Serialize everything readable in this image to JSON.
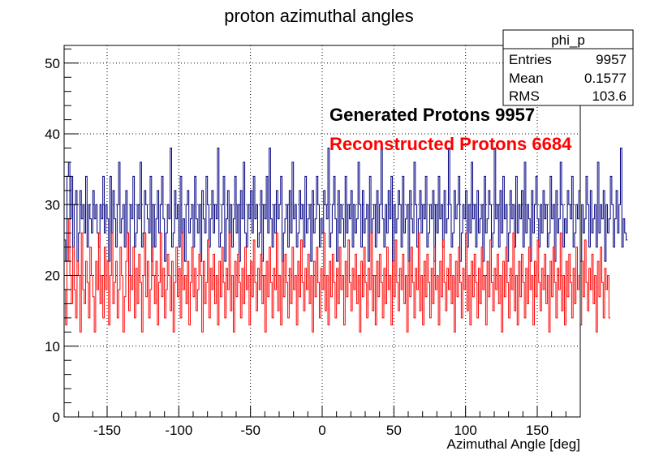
{
  "chart_data": {
    "type": "histogram",
    "title": "proton azimuthal angles",
    "xlabel": "Azimuthal Angle [deg]",
    "ylabel": "",
    "xlim": [
      -180,
      180
    ],
    "ylim": [
      0,
      52.5
    ],
    "grid": true,
    "x_ticks": [
      -150,
      -100,
      -50,
      0,
      50,
      100,
      150
    ],
    "x_tick_labels": [
      "-150",
      "-100",
      "-50",
      "0",
      "50",
      "100",
      "150"
    ],
    "y_ticks": [
      0,
      10,
      20,
      30,
      40,
      50
    ],
    "y_tick_labels": [
      "0",
      "10",
      "20",
      "30",
      "40",
      "50"
    ],
    "bin_range": [
      -180,
      180
    ],
    "n_bins": 360,
    "series": [
      {
        "name": "Generated Protons",
        "color": "#000080",
        "values": [
          25,
          22,
          34,
          36,
          28,
          34,
          24,
          30,
          32,
          22,
          26,
          32,
          28,
          30,
          26,
          34,
          24,
          30,
          28,
          26,
          32,
          28,
          30,
          26,
          24,
          30,
          28,
          34,
          26,
          30,
          28,
          22,
          34,
          26,
          32,
          28,
          24,
          30,
          36,
          26,
          28,
          30,
          24,
          32,
          26,
          20,
          30,
          28,
          34,
          24,
          26,
          30,
          28,
          36,
          24,
          26,
          32,
          30,
          28,
          26,
          34,
          22,
          30,
          24,
          28,
          32,
          26,
          30,
          34,
          28,
          22,
          26,
          30,
          28,
          38,
          24,
          26,
          32,
          28,
          30,
          24,
          34,
          26,
          28,
          22,
          30,
          32,
          26,
          28,
          30,
          24,
          34,
          28,
          26,
          30,
          22,
          32,
          28,
          26,
          34,
          30,
          24,
          28,
          32,
          26,
          30,
          28,
          38,
          24,
          26,
          30,
          34,
          22,
          28,
          32,
          26,
          30,
          24,
          28,
          34,
          26,
          30,
          22,
          32,
          28,
          36,
          26,
          24,
          30,
          28,
          32,
          26,
          34,
          28,
          30,
          24,
          26,
          32,
          22,
          30,
          28,
          34,
          26,
          38,
          28,
          24,
          30,
          26,
          32,
          28,
          30,
          34,
          22,
          26,
          28,
          30,
          24,
          32,
          26,
          36,
          28,
          30,
          24,
          26,
          32,
          28,
          30,
          24,
          34,
          26,
          28,
          30,
          22,
          32,
          26,
          28,
          34,
          30,
          24,
          28,
          26,
          32,
          30,
          28,
          38,
          24,
          26,
          30,
          34,
          28,
          22,
          32,
          26,
          30,
          28,
          24,
          34,
          26,
          30,
          28,
          32,
          24,
          30,
          26,
          28,
          36,
          30,
          24,
          32,
          26,
          28,
          30,
          22,
          34,
          26,
          28,
          30,
          24,
          32,
          26,
          30,
          38,
          28,
          24,
          30,
          26,
          32,
          28,
          34,
          22,
          30,
          26,
          28,
          32,
          30,
          24,
          34,
          26,
          28,
          30,
          22,
          32,
          28,
          26,
          36,
          30,
          24,
          28,
          32,
          26,
          30,
          28,
          34,
          24,
          26,
          30,
          28,
          32,
          22,
          30,
          26,
          34,
          28,
          30,
          24,
          32,
          26,
          28,
          38,
          30,
          24,
          26,
          32,
          28,
          30,
          34,
          22,
          26,
          30,
          28,
          32,
          24,
          30,
          26,
          36,
          28,
          30,
          24,
          32,
          26,
          28,
          30,
          22,
          34,
          26,
          28,
          32,
          30,
          24,
          26,
          38,
          28,
          30,
          24,
          32,
          26,
          34,
          28,
          30,
          22,
          26,
          32,
          28,
          30,
          24,
          34,
          26,
          30,
          28,
          32,
          24,
          36,
          26,
          30,
          28,
          22,
          32,
          26,
          30,
          34,
          28,
          24,
          30,
          26,
          32,
          28,
          30,
          24,
          26,
          34,
          28,
          30,
          22,
          32,
          26,
          28,
          36,
          30,
          24,
          28,
          26,
          32,
          30,
          28,
          34,
          24,
          26,
          30,
          28,
          32,
          22,
          30,
          26,
          28,
          34,
          30,
          24,
          32,
          26,
          28,
          30,
          24,
          36,
          26,
          30,
          28,
          32,
          22,
          30,
          26,
          28,
          34,
          30,
          24,
          28,
          32,
          26,
          30,
          38,
          24,
          28,
          26,
          25
        ],
        "entries": 9957
      },
      {
        "name": "Reconstructed Protons",
        "color": "#ff0000",
        "values": [
          18,
          13,
          22,
          28,
          20,
          16,
          24,
          18,
          14,
          22,
          20,
          12,
          26,
          18,
          16,
          22,
          19,
          14,
          24,
          20,
          17,
          12,
          22,
          18,
          26,
          16,
          20,
          14,
          24,
          18,
          22,
          13,
          20,
          26,
          16,
          19,
          22,
          14,
          18,
          24,
          20,
          12,
          17,
          22,
          26,
          15,
          20,
          18,
          24,
          14,
          21,
          16,
          23,
          19,
          12,
          20,
          26,
          17,
          22,
          14,
          18,
          24,
          20,
          16,
          22,
          13,
          19,
          26,
          17,
          21,
          14,
          18,
          23,
          20,
          15,
          22,
          12,
          19,
          24,
          17,
          21,
          14,
          26,
          18,
          20,
          16,
          22,
          13,
          19,
          24,
          17,
          21,
          15,
          18,
          23,
          20,
          12,
          22,
          16,
          19,
          25,
          14,
          21,
          18,
          23,
          16,
          20,
          13,
          22,
          17,
          24,
          19,
          14,
          21,
          18,
          26,
          15,
          20,
          12,
          22,
          17,
          23,
          19,
          14,
          21,
          16,
          24,
          18,
          20,
          13,
          22,
          17,
          25,
          19,
          15,
          21,
          18,
          23,
          16,
          20,
          12,
          22,
          17,
          24,
          19,
          14,
          21,
          18,
          26,
          15,
          20,
          13,
          22,
          17,
          23,
          19,
          14,
          21,
          16,
          24,
          18,
          20,
          13,
          22,
          17,
          25,
          19,
          15,
          21,
          18,
          23,
          16,
          20,
          12,
          22,
          17,
          24,
          19,
          14,
          21,
          18,
          26,
          15,
          20,
          13,
          22,
          17,
          23,
          19,
          14,
          21,
          16,
          24,
          18,
          20,
          13,
          22,
          17,
          25,
          19,
          15,
          21,
          18,
          23,
          16,
          20,
          12,
          22,
          17,
          24,
          19,
          14,
          21,
          18,
          26,
          15,
          20,
          13,
          22,
          17,
          23,
          19,
          14,
          21,
          16,
          24,
          18,
          20,
          13,
          22,
          17,
          25,
          19,
          15,
          21,
          18,
          23,
          16,
          20,
          12,
          22,
          17,
          24,
          19,
          14,
          21,
          18,
          26,
          15,
          20,
          13,
          22,
          17,
          23,
          19,
          14,
          21,
          16,
          24,
          18,
          20,
          13,
          22,
          17,
          25,
          19,
          15,
          21,
          18,
          23,
          16,
          20,
          12,
          22,
          17,
          24,
          19,
          14,
          21,
          18,
          26,
          15,
          20,
          13,
          22,
          17,
          23,
          19,
          14,
          21,
          16,
          24,
          18,
          20,
          13,
          22,
          17,
          25,
          19,
          15,
          21,
          18,
          23,
          16,
          20,
          12,
          22,
          17,
          24,
          19,
          14,
          21,
          18,
          26,
          15,
          20,
          13,
          22,
          17,
          23,
          19,
          14,
          21,
          16,
          24,
          18,
          20,
          13,
          22,
          17,
          25,
          19,
          15,
          21,
          18,
          23,
          16,
          20,
          12,
          22,
          17,
          24,
          19,
          14,
          21,
          18,
          26,
          15,
          20,
          13,
          22,
          17,
          23,
          19,
          14,
          21,
          16,
          24,
          18,
          20,
          13,
          22,
          17,
          25,
          19,
          15,
          21,
          18,
          23,
          16,
          20,
          12,
          22,
          17,
          24,
          19,
          14,
          21,
          18,
          20,
          14
        ],
        "entries": 6684
      }
    ],
    "annotations": [
      {
        "text": "Generated Protons 9957",
        "color": "#000000"
      },
      {
        "text": "Reconstructed Protons 6684",
        "color": "#ff0000"
      }
    ],
    "stats_box": {
      "name": "phi_p",
      "rows": [
        {
          "label": "Entries",
          "value": "9957"
        },
        {
          "label": "Mean",
          "value": "0.1577"
        },
        {
          "label": "RMS",
          "value": "103.6"
        }
      ]
    }
  }
}
